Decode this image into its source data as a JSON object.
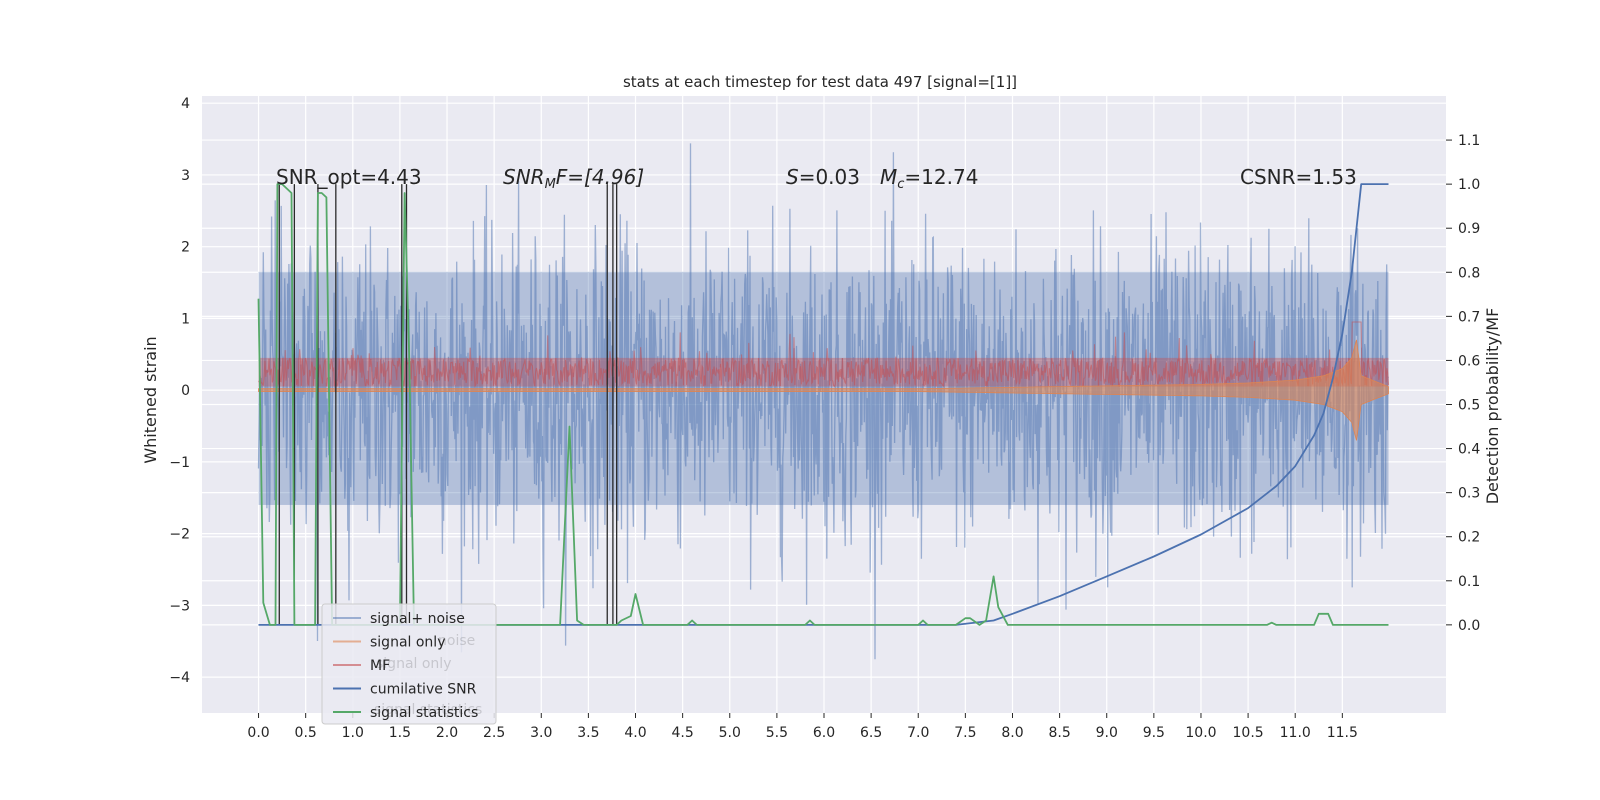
{
  "chart_data": {
    "type": "line",
    "title": "stats at each timestep for test data 497 [signal=[1]]",
    "ylabel": "Whitened strain",
    "ylabel_right": "Detection probability/MF",
    "xlim": [
      -0.6,
      12.6
    ],
    "ylim": [
      -4.5,
      4.1
    ],
    "ylim_right": [
      -0.2,
      1.2
    ],
    "x_ticks": [
      "0.0",
      "0.5",
      "1.0",
      "1.5",
      "2.0",
      "2.5",
      "3.0",
      "3.5",
      "4.0",
      "4.5",
      "5.0",
      "5.5",
      "6.0",
      "6.5",
      "7.0",
      "7.5",
      "8.0",
      "8.5",
      "9.0",
      "9.5",
      "10.0",
      "10.5",
      "11.0",
      "11.5"
    ],
    "y_ticks": [
      "4",
      "3",
      "2",
      "1",
      "0",
      "−1",
      "−2",
      "−3",
      "−4"
    ],
    "y_ticks_right": [
      "0.0",
      "0.1",
      "0.2",
      "0.3",
      "0.4",
      "0.5",
      "0.6",
      "0.7",
      "0.8",
      "0.9",
      "1.0",
      "1.1"
    ],
    "grid": true,
    "annotations": {
      "snr_opt": "SNR_opt=4.43",
      "snr_mf_base": "SNR",
      "snr_mf_sub": "M",
      "snr_mf_rest": "F=[4.96]",
      "s_var": "S",
      "s_val": "=0.03",
      "mc_var": "M",
      "mc_sub": "c",
      "mc_val": "=12.74",
      "csnr": "CSNR=1.53"
    },
    "legend": {
      "placement": "lower-left",
      "entries": [
        {
          "label": "signal+ noise",
          "color": "#4c72b0"
        },
        {
          "label": "signal only",
          "color": "#dd8452"
        },
        {
          "label": "MF",
          "color": "#c44e52"
        },
        {
          "label": "cumilative SNR",
          "color": "#4c72b0"
        },
        {
          "label": "signal statistics",
          "color": "#55a868"
        }
      ],
      "ghost_entries": [
        "noise",
        "signal only",
        "signal statistics"
      ]
    },
    "series": [
      {
        "name": "signal+ noise",
        "axis": "left",
        "color": "#4c72b0",
        "opacity": 0.5,
        "x_range": [
          0.0,
          11.99
        ],
        "band": [
          -1.6,
          1.65
        ],
        "spike_max": 3.7,
        "spike_min": -3.75
      },
      {
        "name": "signal only",
        "axis": "left",
        "color": "#dd8452",
        "opacity": 0.6,
        "x": [
          0.0,
          7.0,
          8.0,
          9.0,
          10.0,
          10.5,
          11.0,
          11.3,
          11.5,
          11.6,
          11.65,
          11.7,
          11.99
        ],
        "amp": [
          0.02,
          0.02,
          0.04,
          0.06,
          0.08,
          0.1,
          0.14,
          0.2,
          0.3,
          0.45,
          0.7,
          0.2,
          0.05
        ]
      },
      {
        "name": "MF",
        "axis": "left",
        "color": "#c44e52",
        "opacity": 0.55,
        "x_range": [
          0.0,
          11.99
        ],
        "base": 0.05,
        "top": 0.45
      },
      {
        "name": "cumilative SNR",
        "axis": "right",
        "color": "#4c72b0",
        "x": [
          0.0,
          7.4,
          7.8,
          8.0,
          8.5,
          9.0,
          9.5,
          10.0,
          10.5,
          10.8,
          11.0,
          11.2,
          11.3,
          11.4,
          11.5,
          11.6,
          11.65,
          11.7,
          11.99
        ],
        "y": [
          0.0,
          0.0,
          0.01,
          0.025,
          0.065,
          0.11,
          0.155,
          0.205,
          0.265,
          0.315,
          0.36,
          0.43,
          0.48,
          0.56,
          0.66,
          0.8,
          0.9,
          1.0,
          1.0
        ]
      },
      {
        "name": "signal statistics",
        "axis": "right",
        "color": "#55a868",
        "x": [
          0.0,
          0.05,
          0.12,
          0.18,
          0.2,
          0.25,
          0.35,
          0.38,
          0.42,
          0.6,
          0.63,
          0.67,
          0.72,
          0.78,
          0.82,
          0.87,
          0.9,
          1.5,
          1.52,
          1.55,
          1.6,
          1.65,
          2.0,
          3.2,
          3.3,
          3.38,
          3.45,
          3.8,
          3.85,
          3.95,
          4.0,
          4.08,
          4.2,
          4.55,
          4.6,
          4.65,
          5.8,
          5.85,
          5.9,
          7.0,
          7.05,
          7.1,
          7.4,
          7.5,
          7.55,
          7.65,
          7.72,
          7.8,
          7.85,
          7.95,
          10.7,
          10.75,
          10.8,
          11.2,
          11.25,
          11.35,
          11.4,
          11.99
        ],
        "y": [
          0.74,
          0.05,
          0.0,
          0.0,
          1.0,
          1.0,
          0.98,
          0.0,
          0.0,
          0.0,
          0.98,
          0.98,
          0.97,
          0.0,
          0.0,
          0.0,
          0.0,
          0.0,
          0.4,
          0.98,
          0.6,
          0.0,
          0.0,
          0.0,
          0.45,
          0.01,
          0.0,
          0.0,
          0.01,
          0.02,
          0.07,
          0.0,
          0.0,
          0.0,
          0.01,
          0.0,
          0.0,
          0.01,
          0.0,
          0.0,
          0.01,
          0.0,
          0.0,
          0.015,
          0.015,
          0.0,
          0.01,
          0.11,
          0.04,
          0.0,
          0.0,
          0.005,
          0.0,
          0.0,
          0.025,
          0.025,
          0.0,
          0.0
        ]
      }
    ],
    "vlines": [
      0.22,
      0.38,
      0.63,
      0.82,
      1.52,
      1.57,
      3.7,
      3.76,
      3.8
    ],
    "vline_color": "#2a2a2a"
  }
}
